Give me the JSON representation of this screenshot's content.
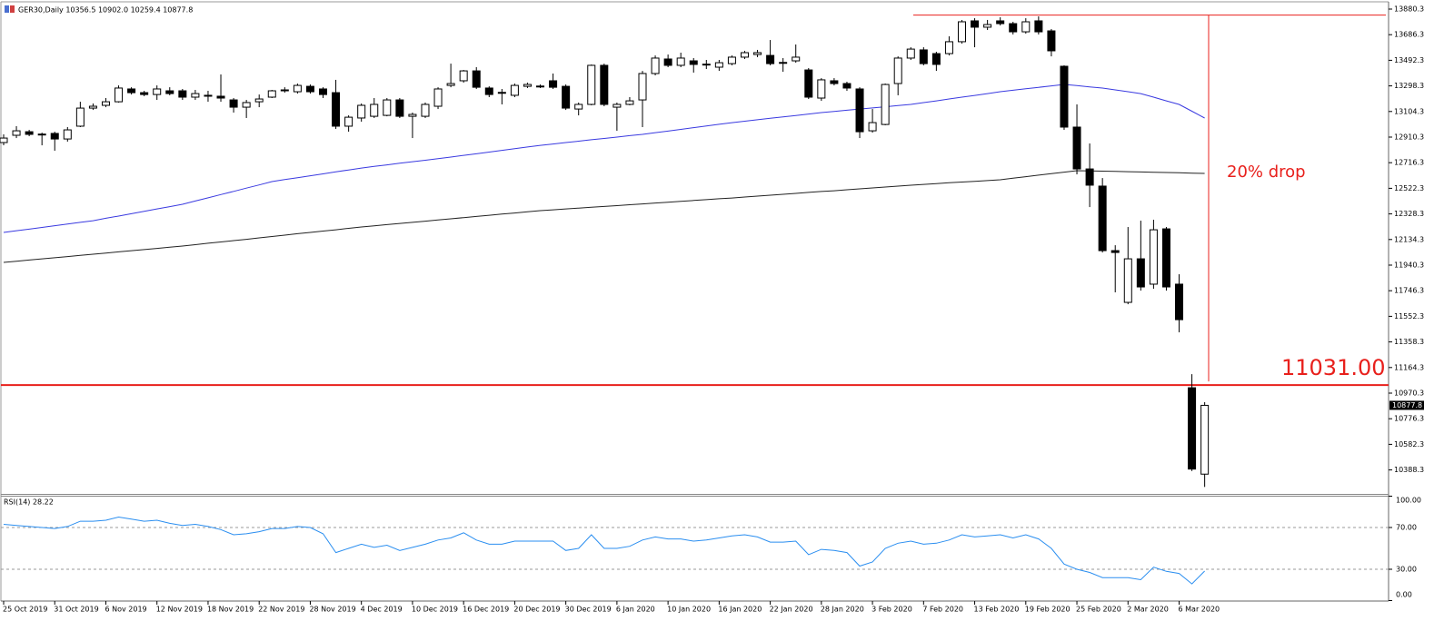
{
  "chart_data": {
    "type": "candlestick",
    "title": "GER30,Daily 10356.5 10902.0 10259.4 10877.8",
    "categories": [
      "25 Oct 2019",
      null,
      null,
      null,
      "31 Oct 2019",
      null,
      null,
      null,
      "6 Nov 2019",
      null,
      null,
      null,
      "12 Nov 2019",
      null,
      null,
      null,
      "18 Nov 2019",
      null,
      null,
      null,
      "22 Nov 2019",
      null,
      null,
      null,
      "28 Nov 2019",
      null,
      null,
      null,
      "4 Dec 2019",
      null,
      null,
      null,
      "10 Dec 2019",
      null,
      null,
      null,
      "16 Dec 2019",
      null,
      null,
      null,
      "20 Dec 2019",
      null,
      null,
      null,
      "30 Dec 2019",
      null,
      null,
      null,
      "6 Jan 2020",
      null,
      null,
      null,
      "10 Jan 2020",
      null,
      null,
      null,
      "16 Jan 2020",
      null,
      null,
      null,
      "22 Jan 2020",
      null,
      null,
      null,
      "28 Jan 2020",
      null,
      null,
      null,
      "3 Feb 2020",
      null,
      null,
      null,
      "7 Feb 2020",
      null,
      null,
      null,
      "13 Feb 2020",
      null,
      null,
      null,
      "19 Feb 2020",
      null,
      null,
      null,
      "25 Feb 2020",
      null,
      null,
      null,
      "2 Mar 2020",
      null,
      null,
      null,
      "6 Mar 2020",
      null,
      null
    ],
    "open": [
      12869,
      12924,
      12951,
      12931,
      12938,
      12896,
      12993,
      13130,
      13151,
      13178,
      13275,
      13247,
      13233,
      13261,
      13261,
      13213,
      13220,
      13220,
      13192,
      13137,
      13178,
      13213,
      13261,
      13254,
      13295,
      13275,
      13247,
      12993,
      13055,
      13068,
      13075,
      13192,
      13068,
      13068,
      13144,
      13302,
      13337,
      13412,
      13282,
      13247,
      13227,
      13295,
      13295,
      13337,
      13295,
      13123,
      13158,
      13454,
      13137,
      13158,
      13192,
      13392,
      13502,
      13454,
      13488,
      13461,
      13440,
      13467,
      13516,
      13536,
      13529,
      13474,
      13488,
      13419,
      13206,
      13337,
      13316,
      13275,
      12958,
      13006,
      13316,
      13509,
      13571,
      13543,
      13543,
      13633,
      13791,
      13743,
      13791,
      13770,
      13708,
      13791,
      13715,
      13447,
      12986,
      12669,
      12539,
      12050,
      11658,
      11988,
      11796,
      12215,
      11796,
      11011,
      10356.5
    ],
    "high": [
      12931,
      12993,
      12965,
      12944,
      12951,
      12986,
      13178,
      13165,
      13206,
      13302,
      13288,
      13261,
      13302,
      13288,
      13275,
      13268,
      13261,
      13385,
      13206,
      13192,
      13233,
      13268,
      13288,
      13316,
      13309,
      13288,
      13344,
      13075,
      13165,
      13206,
      13206,
      13206,
      13096,
      13172,
      13288,
      13467,
      13419,
      13440,
      13295,
      13275,
      13316,
      13323,
      13309,
      13392,
      13309,
      13172,
      13460,
      13467,
      13172,
      13213,
      13412,
      13529,
      13536,
      13550,
      13509,
      13495,
      13495,
      13529,
      13564,
      13571,
      13646,
      13509,
      13612,
      13433,
      13357,
      13357,
      13330,
      13288,
      13123,
      13316,
      13522,
      13591,
      13591,
      13557,
      13674,
      13798,
      13811,
      13798,
      13818,
      13784,
      13811,
      13825,
      13729,
      13454,
      13158,
      12862,
      12600,
      12091,
      12229,
      12277,
      12284,
      12229,
      11871,
      11114,
      10902
    ],
    "low": [
      12848,
      12903,
      12917,
      12848,
      12807,
      12876,
      12986,
      13116,
      13137,
      13172,
      13233,
      13220,
      13192,
      13227,
      13192,
      13192,
      13178,
      13178,
      13096,
      13055,
      13137,
      13206,
      13247,
      13240,
      13240,
      13206,
      12972,
      12951,
      13027,
      13055,
      13068,
      13055,
      12903,
      13055,
      13123,
      13288,
      13323,
      13275,
      13213,
      13158,
      13213,
      13282,
      13282,
      13275,
      13116,
      13075,
      13151,
      13144,
      12958,
      13151,
      12986,
      13378,
      13440,
      13440,
      13399,
      13426,
      13412,
      13454,
      13502,
      13516,
      13454,
      13405,
      13474,
      13199,
      13185,
      13302,
      13261,
      12903,
      12944,
      13000,
      13227,
      13495,
      13454,
      13412,
      13529,
      13619,
      13591,
      13722,
      13756,
      13688,
      13694,
      13688,
      13522,
      12965,
      12628,
      12380,
      12036,
      11734,
      11644,
      11747,
      11761,
      11747,
      11431,
      10380,
      10259.4
    ],
    "close": [
      12903,
      12958,
      12931,
      12933,
      12896,
      12965,
      13130,
      13144,
      13178,
      13282,
      13247,
      13233,
      13275,
      13240,
      13213,
      13240,
      13227,
      13206,
      13137,
      13172,
      13199,
      13261,
      13268,
      13302,
      13254,
      13233,
      12993,
      13061,
      13151,
      13158,
      13192,
      13068,
      13082,
      13158,
      13275,
      13316,
      13412,
      13288,
      13233,
      13249,
      13302,
      13309,
      13297,
      13288,
      13130,
      13158,
      13454,
      13158,
      13158,
      13185,
      13392,
      13509,
      13454,
      13509,
      13461,
      13463,
      13474,
      13516,
      13550,
      13550,
      13467,
      13476,
      13516,
      13213,
      13344,
      13316,
      13282,
      12951,
      13020,
      13309,
      13509,
      13577,
      13467,
      13461,
      13633,
      13784,
      13743,
      13763,
      13770,
      13708,
      13784,
      13708,
      13564,
      12986,
      12669,
      12546,
      12050,
      12036,
      11988,
      11775,
      12208,
      11775,
      11527,
      10395,
      10877.8
    ],
    "up_color": "#ffffff",
    "down_color": "#000000",
    "overlays": [
      {
        "color": "#3a3ae0",
        "values": [
          12188,
          12201,
          12213,
          12226,
          12239,
          12251,
          12264,
          12277,
          12295,
          12312,
          12330,
          12348,
          12366,
          12383,
          12401,
          12426,
          12450,
          12475,
          12499,
          12524,
          12548,
          12573,
          12588,
          12602,
          12617,
          12632,
          12647,
          12661,
          12676,
          12688,
          12700,
          12712,
          12724,
          12735,
          12747,
          12759,
          12772,
          12784,
          12797,
          12810,
          12822,
          12835,
          12848,
          12858,
          12869,
          12879,
          12890,
          12900,
          12910,
          12921,
          12931,
          12944,
          12956,
          12969,
          12982,
          12995,
          13007,
          13020,
          13031,
          13042,
          13053,
          13063,
          13074,
          13085,
          13096,
          13105,
          13114,
          13123,
          13131,
          13140,
          13149,
          13158,
          13172,
          13185,
          13199,
          13213,
          13226,
          13240,
          13254,
          13265,
          13276,
          13287,
          13298,
          13309,
          13300,
          13291,
          13282,
          13268,
          13254,
          13240,
          13213,
          13185,
          13158,
          13106,
          13055
        ]
      },
      {
        "color": "#222222",
        "values": [
          11961,
          11970,
          11979,
          11988,
          11996,
          12005,
          12014,
          12023,
          12032,
          12041,
          12050,
          12058,
          12067,
          12076,
          12085,
          12095,
          12106,
          12116,
          12126,
          12136,
          12147,
          12157,
          12167,
          12178,
          12188,
          12198,
          12208,
          12219,
          12229,
          12238,
          12247,
          12256,
          12264,
          12273,
          12282,
          12291,
          12300,
          12309,
          12318,
          12327,
          12335,
          12344,
          12353,
          12359,
          12366,
          12372,
          12379,
          12385,
          12391,
          12398,
          12404,
          12411,
          12417,
          12423,
          12430,
          12436,
          12443,
          12449,
          12456,
          12463,
          12470,
          12477,
          12484,
          12491,
          12498,
          12504,
          12511,
          12518,
          12525,
          12532,
          12539,
          12546,
          12552,
          12558,
          12564,
          12570,
          12575,
          12581,
          12587,
          12599,
          12610,
          12622,
          12633,
          12645,
          12656,
          12654,
          12652,
          12650,
          12648,
          12646,
          12644,
          12642,
          12640,
          12637,
          12635
        ]
      }
    ],
    "ylim": [
      10206.7,
      13935.3
    ],
    "yticks": [
      13880.3,
      13686.3,
      13492.3,
      13298.3,
      13104.3,
      12910.3,
      12716.3,
      12522.3,
      12328.3,
      12134.3,
      11940.3,
      11746.3,
      11552.3,
      11358.3,
      11164.3,
      10970.3,
      10776.3,
      10582.3,
      10388.3
    ],
    "last_price_label": "10877.8",
    "peak_line": {
      "value": 13835,
      "color": "#e8201c"
    },
    "support_line": {
      "value": 11031,
      "label": "11031.00",
      "color": "#e8201c"
    },
    "drop_label": "20% drop",
    "indicator": {
      "type": "line",
      "title": "RSI(14) 28.22",
      "color": "#2a8ef0",
      "ylim": [
        0,
        100
      ],
      "yticks": [
        {
          "value": 100,
          "label": "100.00"
        },
        {
          "value": 70,
          "label": "70.00"
        },
        {
          "value": 30,
          "label": "30.00"
        },
        {
          "value": 0,
          "label": "0.00"
        }
      ],
      "values": [
        73,
        72,
        71,
        70,
        69,
        71,
        76,
        76,
        77,
        80,
        78,
        76,
        77,
        74,
        72,
        73,
        71,
        68,
        63,
        64,
        66,
        69,
        69,
        71,
        70,
        64,
        46,
        50,
        54,
        51,
        53,
        48,
        51,
        54,
        58,
        60,
        65,
        58,
        54,
        54,
        57,
        57,
        57,
        57,
        48,
        50,
        63,
        50,
        50,
        52,
        58,
        61,
        59,
        59,
        57,
        58,
        60,
        62,
        63,
        61,
        56,
        56,
        57,
        44,
        49,
        48,
        46,
        33,
        37,
        50,
        55,
        57,
        54,
        55,
        58,
        63,
        61,
        62,
        63,
        60,
        63,
        59,
        50,
        35,
        30,
        27,
        22,
        22,
        22,
        20,
        32,
        28,
        26,
        16,
        28.22
      ]
    }
  }
}
